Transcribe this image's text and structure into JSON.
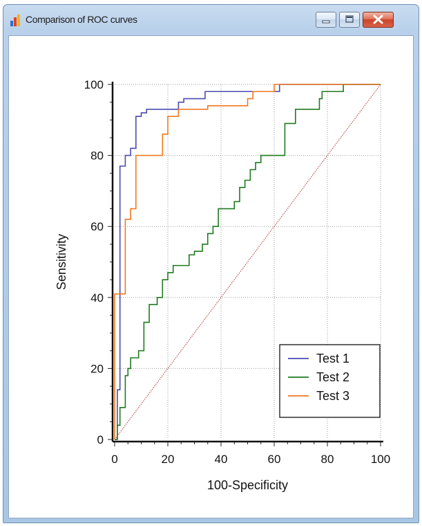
{
  "window": {
    "title": "Comparison of ROC curves",
    "icon": "bar-chart-icon",
    "controls": [
      "minimize-icon",
      "maximize-icon",
      "close-icon"
    ]
  },
  "chart_data": {
    "type": "line",
    "title": "",
    "xlabel": "100-Specificity",
    "ylabel": "Sensitivity",
    "xlim": [
      0,
      100
    ],
    "ylim": [
      0,
      100
    ],
    "x_ticks": [
      0,
      20,
      40,
      60,
      80,
      100
    ],
    "y_ticks": [
      0,
      20,
      40,
      60,
      80,
      100
    ],
    "grid": true,
    "legend_position": "bottom-right",
    "series": [
      {
        "name": "Test 1",
        "color": "#4a4ab0",
        "points": [
          [
            0,
            0
          ],
          [
            0,
            0
          ],
          [
            1,
            0
          ],
          [
            1,
            14
          ],
          [
            2,
            14
          ],
          [
            2,
            77
          ],
          [
            4,
            77
          ],
          [
            4,
            80
          ],
          [
            6,
            80
          ],
          [
            6,
            82
          ],
          [
            8,
            82
          ],
          [
            8,
            91
          ],
          [
            10,
            91
          ],
          [
            10,
            92
          ],
          [
            12,
            92
          ],
          [
            12,
            93
          ],
          [
            24,
            93
          ],
          [
            24,
            95
          ],
          [
            26,
            95
          ],
          [
            26,
            96
          ],
          [
            34,
            96
          ],
          [
            34,
            98
          ],
          [
            62,
            98
          ],
          [
            62,
            100
          ],
          [
            100,
            100
          ]
        ]
      },
      {
        "name": "Test 2",
        "color": "#1f7a1f",
        "points": [
          [
            0,
            0
          ],
          [
            1,
            0
          ],
          [
            1,
            4
          ],
          [
            2,
            4
          ],
          [
            2,
            9
          ],
          [
            4,
            9
          ],
          [
            4,
            18
          ],
          [
            5,
            18
          ],
          [
            5,
            20
          ],
          [
            6,
            20
          ],
          [
            6,
            23
          ],
          [
            9,
            23
          ],
          [
            9,
            25
          ],
          [
            11,
            25
          ],
          [
            11,
            33
          ],
          [
            13,
            33
          ],
          [
            13,
            38
          ],
          [
            16,
            38
          ],
          [
            16,
            40
          ],
          [
            18,
            40
          ],
          [
            18,
            45
          ],
          [
            20,
            45
          ],
          [
            20,
            47
          ],
          [
            22,
            47
          ],
          [
            22,
            49
          ],
          [
            28,
            49
          ],
          [
            28,
            52
          ],
          [
            30,
            52
          ],
          [
            30,
            53
          ],
          [
            33,
            53
          ],
          [
            33,
            55
          ],
          [
            35,
            55
          ],
          [
            35,
            58
          ],
          [
            37,
            58
          ],
          [
            37,
            60
          ],
          [
            39,
            60
          ],
          [
            39,
            65
          ],
          [
            45,
            65
          ],
          [
            45,
            67
          ],
          [
            47,
            67
          ],
          [
            47,
            71
          ],
          [
            49,
            71
          ],
          [
            49,
            73
          ],
          [
            51,
            73
          ],
          [
            51,
            76
          ],
          [
            53,
            76
          ],
          [
            53,
            78
          ],
          [
            55,
            78
          ],
          [
            55,
            80
          ],
          [
            64,
            80
          ],
          [
            64,
            89
          ],
          [
            68,
            89
          ],
          [
            68,
            93
          ],
          [
            77,
            93
          ],
          [
            77,
            96
          ],
          [
            78,
            96
          ],
          [
            78,
            98
          ],
          [
            86,
            98
          ],
          [
            86,
            100
          ],
          [
            100,
            100
          ]
        ]
      },
      {
        "name": "Test 3",
        "color": "#f07820",
        "points": [
          [
            0,
            0
          ],
          [
            0,
            41
          ],
          [
            4,
            41
          ],
          [
            4,
            62
          ],
          [
            6,
            62
          ],
          [
            6,
            65
          ],
          [
            8,
            65
          ],
          [
            8,
            80
          ],
          [
            18,
            80
          ],
          [
            18,
            86
          ],
          [
            20,
            86
          ],
          [
            20,
            91
          ],
          [
            24,
            91
          ],
          [
            24,
            93
          ],
          [
            35,
            93
          ],
          [
            35,
            94
          ],
          [
            50,
            94
          ],
          [
            50,
            96
          ],
          [
            52,
            96
          ],
          [
            52,
            98
          ],
          [
            60,
            98
          ],
          [
            60,
            100
          ],
          [
            100,
            100
          ]
        ]
      },
      {
        "name": "",
        "color": "#c0504d",
        "style": "dotted",
        "points": [
          [
            0,
            0
          ],
          [
            100,
            100
          ]
        ]
      }
    ]
  }
}
